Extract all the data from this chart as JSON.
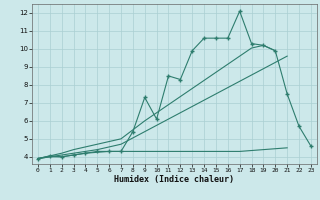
{
  "xlabel": "Humidex (Indice chaleur)",
  "x": [
    0,
    1,
    2,
    3,
    4,
    5,
    6,
    7,
    8,
    9,
    10,
    11,
    12,
    13,
    14,
    15,
    16,
    17,
    18,
    19,
    20,
    21,
    22,
    23
  ],
  "y_main": [
    3.9,
    4.05,
    4.0,
    4.1,
    4.2,
    4.3,
    4.3,
    4.3,
    5.4,
    7.3,
    6.1,
    8.5,
    8.3,
    9.9,
    10.6,
    10.6,
    10.6,
    12.1,
    10.3,
    10.2,
    9.9,
    7.5,
    5.7,
    4.6
  ],
  "y_diag_upper": [
    3.9,
    4.05,
    4.2,
    4.4,
    4.55,
    4.7,
    4.85,
    5.0,
    5.5,
    6.0,
    6.45,
    6.9,
    7.35,
    7.8,
    8.25,
    8.7,
    9.15,
    9.6,
    10.05,
    10.2,
    9.9,
    null,
    null,
    null
  ],
  "y_diag_lower": [
    3.9,
    4.0,
    4.1,
    4.2,
    4.3,
    4.4,
    4.55,
    4.7,
    5.05,
    5.4,
    5.75,
    6.1,
    6.45,
    6.8,
    7.15,
    7.5,
    7.85,
    8.2,
    8.55,
    8.9,
    9.25,
    9.6,
    null,
    null
  ],
  "y_flat": [
    3.9,
    4.0,
    4.0,
    4.1,
    4.2,
    4.25,
    4.3,
    4.3,
    4.3,
    4.3,
    4.3,
    4.3,
    4.3,
    4.3,
    4.3,
    4.3,
    4.3,
    4.3,
    4.35,
    4.4,
    4.45,
    4.5,
    null,
    4.6
  ],
  "color": "#2e7d6e",
  "bg_color": "#cce8ea",
  "grid_color": "#aacfd2",
  "ylim": [
    3.6,
    12.5
  ],
  "xlim": [
    -0.5,
    23.5
  ],
  "yticks": [
    4,
    5,
    6,
    7,
    8,
    9,
    10,
    11,
    12
  ],
  "xticks": [
    0,
    1,
    2,
    3,
    4,
    5,
    6,
    7,
    8,
    9,
    10,
    11,
    12,
    13,
    14,
    15,
    16,
    17,
    18,
    19,
    20,
    21,
    22,
    23
  ]
}
